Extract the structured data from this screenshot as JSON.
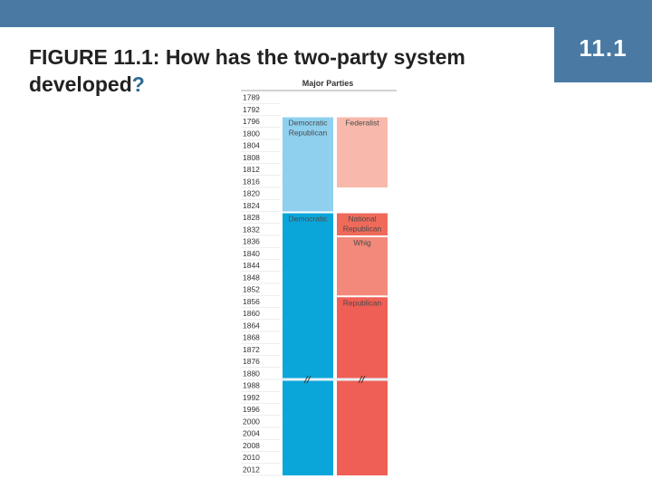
{
  "slide": {
    "badge": "11.1",
    "title": "FIGURE 11.1: How has the two-party system developed",
    "title_qmark": "?"
  },
  "colors": {
    "header_bar": "#4a7aa4",
    "democratic_republican": "#8fd0ef",
    "democratic": "#0aa6da",
    "federalist": "#f8b9ac",
    "national_republican": "#ef6a5a",
    "whig": "#f2897a",
    "republican": "#ef5f55"
  },
  "chart_data": {
    "type": "timeline",
    "title": "Major Parties",
    "years": [
      "1789",
      "1792",
      "1796",
      "1800",
      "1804",
      "1808",
      "1812",
      "1816",
      "1820",
      "1824",
      "1828",
      "1832",
      "1836",
      "1840",
      "1844",
      "1848",
      "1852",
      "1856",
      "1860",
      "1864",
      "1868",
      "1872",
      "1876",
      "1880",
      "1988",
      "1992",
      "1996",
      "2000",
      "2004",
      "2008",
      "2010",
      "2012"
    ],
    "break_after": "1880",
    "columns": [
      {
        "name": "left",
        "bands": [
          {
            "label": "Democratic Republican",
            "start": "1796",
            "end": "1824",
            "color": "#8fd0ef"
          },
          {
            "label": "Democratic",
            "start": "1828",
            "end": "2012",
            "color": "#0aa6da"
          }
        ]
      },
      {
        "name": "right",
        "bands": [
          {
            "label": "Federalist",
            "start": "1796",
            "end": "1816",
            "color": "#f8b9ac"
          },
          {
            "label": "National Republican",
            "start": "1828",
            "end": "1832",
            "color": "#ef6a5a"
          },
          {
            "label": "Whig",
            "start": "1836",
            "end": "1852",
            "color": "#f2897a"
          },
          {
            "label": "Republican",
            "start": "1856",
            "end": "2012",
            "color": "#ef5f55"
          }
        ]
      }
    ]
  }
}
